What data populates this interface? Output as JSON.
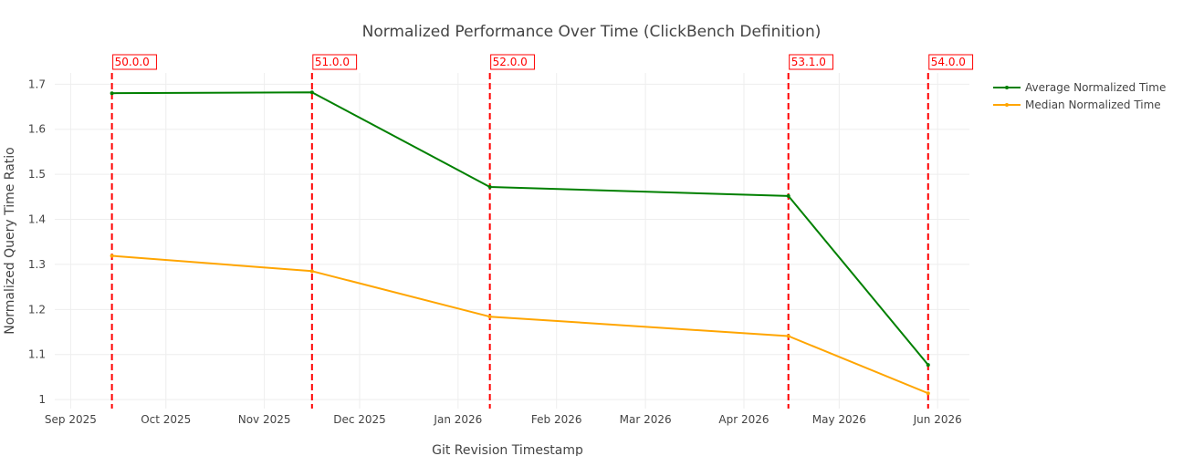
{
  "chart_data": {
    "type": "line",
    "title": "Normalized Performance Over Time (ClickBench Definition)",
    "xlabel": "Git Revision Timestamp",
    "ylabel": "Normalized Query Time Ratio",
    "x_axis_type": "date",
    "xlim": [
      "2025-08-27",
      "2026-06-11"
    ],
    "ylim": [
      0.98,
      1.725
    ],
    "x_ticks": [
      {
        "date": "2025-09-01",
        "label": "Sep 2025"
      },
      {
        "date": "2025-10-01",
        "label": "Oct 2025"
      },
      {
        "date": "2025-11-01",
        "label": "Nov 2025"
      },
      {
        "date": "2025-12-01",
        "label": "Dec 2025"
      },
      {
        "date": "2026-01-01",
        "label": "Jan 2026"
      },
      {
        "date": "2026-02-01",
        "label": "Feb 2026"
      },
      {
        "date": "2026-03-01",
        "label": "Mar 2026"
      },
      {
        "date": "2026-04-01",
        "label": "Apr 2026"
      },
      {
        "date": "2026-05-01",
        "label": "May 2026"
      },
      {
        "date": "2026-06-01",
        "label": "Jun 2026"
      }
    ],
    "y_ticks": [
      1,
      1.1,
      1.2,
      1.3,
      1.4,
      1.5,
      1.6,
      1.7
    ],
    "grid": true,
    "legend_position": "top-right",
    "x": [
      "2025-09-14",
      "2025-11-16",
      "2026-01-11",
      "2026-04-15",
      "2026-05-29"
    ],
    "series": [
      {
        "name": "Average Normalized Time",
        "color": "#008000",
        "values": [
          1.68,
          1.682,
          1.472,
          1.452,
          1.077
        ]
      },
      {
        "name": "Median Normalized Time",
        "color": "#FFA500",
        "values": [
          1.319,
          1.285,
          1.184,
          1.141,
          1.014
        ]
      }
    ],
    "releases": [
      {
        "label": "50.0.0",
        "date": "2025-09-14"
      },
      {
        "label": "51.0.0",
        "date": "2025-11-16"
      },
      {
        "label": "52.0.0",
        "date": "2026-01-11"
      },
      {
        "label": "53.1.0",
        "date": "2026-04-15"
      },
      {
        "label": "54.0.0",
        "date": "2026-05-29"
      }
    ],
    "release_line_color": "#FF0000"
  }
}
